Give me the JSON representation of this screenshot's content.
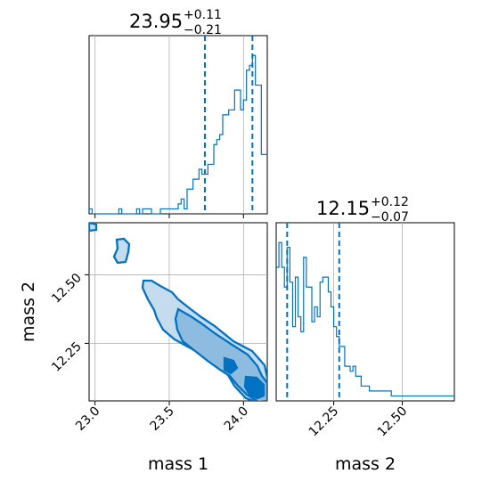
{
  "accent_color": "#0072c1",
  "chart_data": [
    {
      "type": "histogram",
      "panel": "mass-1-marginal",
      "title": {
        "value": "23.95",
        "upper": "+0.11",
        "lower": "−0.21"
      },
      "xlim": [
        22.96,
        24.16
      ],
      "ylim": [
        0,
        36
      ],
      "bin_edges": [
        22.96,
        22.98,
        23.0,
        23.02,
        23.04,
        23.06,
        23.08,
        23.1,
        23.12,
        23.14,
        23.16,
        23.18,
        23.2,
        23.22,
        23.24,
        23.26,
        23.28,
        23.3,
        23.32,
        23.34,
        23.36,
        23.38,
        23.4,
        23.42,
        23.44,
        23.46,
        23.48,
        23.5,
        23.52,
        23.54,
        23.56,
        23.58,
        23.6,
        23.62,
        23.64,
        23.66,
        23.68,
        23.7,
        23.72,
        23.74,
        23.76,
        23.78,
        23.8,
        23.82,
        23.84,
        23.86,
        23.88,
        23.9,
        23.92,
        23.94,
        23.96,
        23.98,
        24.0,
        24.02,
        24.04,
        24.06,
        24.08,
        24.1,
        24.12,
        24.14,
        24.16
      ],
      "counts": [
        1,
        0,
        0,
        0,
        0,
        0,
        0,
        0,
        0,
        0,
        1,
        0,
        0,
        0,
        0,
        0,
        1,
        0,
        1,
        1,
        1,
        0,
        0,
        0,
        1,
        1,
        1,
        1,
        1,
        1,
        2,
        3,
        1,
        5,
        5,
        7,
        7,
        9,
        8,
        8,
        10,
        10,
        14,
        15,
        16,
        20,
        20,
        21,
        21,
        25,
        25,
        21,
        23,
        29,
        30,
        32,
        26,
        26,
        12,
        12
      ],
      "quantile_lines": [
        23.74,
        24.06
      ]
    },
    {
      "type": "histogram",
      "panel": "mass-2-marginal",
      "title": {
        "value": "12.15",
        "upper": "+0.12",
        "lower": "−0.07"
      },
      "xlim": [
        12.04,
        12.69
      ],
      "ylim": [
        0,
        36
      ],
      "bin_edges": [
        12.04,
        12.05,
        12.06,
        12.07,
        12.08,
        12.09,
        12.1,
        12.11,
        12.12,
        12.13,
        12.14,
        12.15,
        12.16,
        12.17,
        12.18,
        12.19,
        12.2,
        12.21,
        12.22,
        12.23,
        12.24,
        12.25,
        12.26,
        12.27,
        12.28,
        12.29,
        12.3,
        12.31,
        12.32,
        12.33,
        12.34,
        12.35,
        12.36,
        12.37,
        12.38,
        12.39,
        12.4,
        12.41,
        12.42,
        12.43,
        12.44,
        12.45,
        12.46,
        12.47,
        12.48,
        12.49,
        12.5,
        12.51,
        12.52,
        12.53,
        12.54,
        12.55,
        12.56,
        12.57,
        12.58,
        12.59,
        12.6,
        12.61,
        12.62,
        12.63,
        12.64,
        12.65,
        12.66,
        12.67,
        12.68,
        12.69
      ],
      "counts": [
        27,
        32,
        27,
        23,
        31,
        24,
        15,
        25,
        17,
        14,
        29,
        23,
        23,
        16,
        19,
        17,
        24,
        25,
        25,
        22,
        19,
        15,
        13,
        11,
        11,
        7,
        7,
        6,
        7,
        5,
        5,
        3,
        3,
        3,
        2,
        2,
        2,
        2,
        2,
        2,
        2,
        2,
        1,
        1,
        1,
        1,
        1,
        1,
        1,
        1,
        1,
        1,
        1,
        1,
        1,
        1,
        1,
        1,
        1,
        1,
        1,
        1,
        1,
        1,
        1
      ],
      "quantile_lines": [
        12.08,
        12.27
      ]
    },
    {
      "type": "contour",
      "panel": "mass-1-vs-mass-2",
      "xlabel": "mass 1",
      "ylabel": "mass 2",
      "xlim": [
        22.96,
        24.16
      ],
      "ylim": [
        12.04,
        12.69
      ],
      "levels": [
        {
          "level": "outer",
          "fill": "#c5dcef"
        },
        {
          "level": "middle",
          "fill": "#8ebbe0"
        },
        {
          "level": "inner",
          "fill": "#0072c1"
        }
      ]
    }
  ],
  "axes": {
    "x_ticks_mass1": [
      "23.0",
      "23.5",
      "24.0"
    ],
    "x_ticks_mass2": [
      "12.25",
      "12.50"
    ],
    "y_ticks_mass2": [
      "12.50",
      "12.25"
    ],
    "xlabel_left": "mass 1",
    "xlabel_right": "mass 2",
    "ylabel": "mass 2"
  }
}
